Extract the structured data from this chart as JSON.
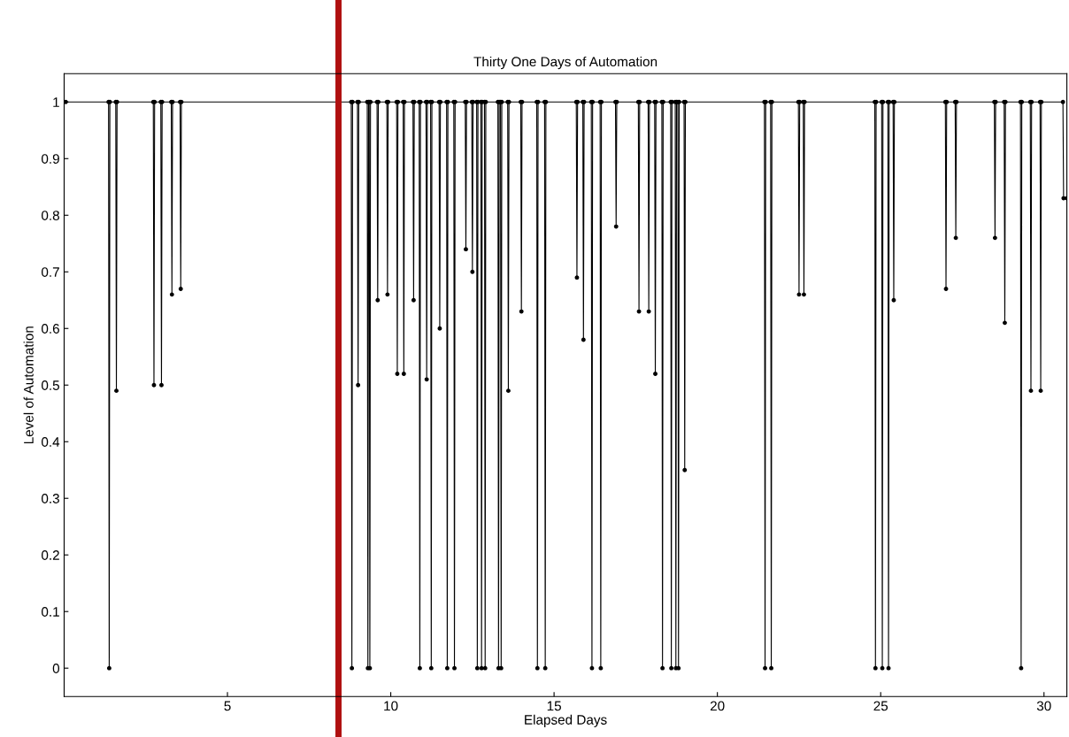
{
  "chart_data": {
    "type": "line",
    "title": "Thirty One Days of Automation",
    "xlabel": "Elapsed Days",
    "ylabel": "Level of Automation",
    "xlim": [
      0,
      30.7
    ],
    "ylim": [
      -0.05,
      1.05
    ],
    "xticks": [
      5,
      10,
      15,
      20,
      25,
      30
    ],
    "yticks": [
      0,
      0.1,
      0.2,
      0.3,
      0.4,
      0.5,
      0.6,
      0.7,
      0.8,
      0.9,
      1
    ],
    "marker": "circle",
    "line_style": "solid",
    "grid": false,
    "legend": false,
    "ref_lines": [
      {
        "axis": "x",
        "value": 8.4,
        "color": "#b01010",
        "line_style": "solid"
      }
    ],
    "series": [
      {
        "color": "#000000",
        "x": [
          0.05,
          1.36,
          1.38,
          1.4,
          1.58,
          1.6,
          1.62,
          2.73,
          2.75,
          2.77,
          2.96,
          2.98,
          3.0,
          3.28,
          3.3,
          3.32,
          3.55,
          3.57,
          3.59,
          8.79,
          8.81,
          8.83,
          8.98,
          9.0,
          9.02,
          9.28,
          9.3,
          9.32,
          9.34,
          9.36,
          9.38,
          9.58,
          9.6,
          9.62,
          9.88,
          9.9,
          9.92,
          10.18,
          10.2,
          10.22,
          10.38,
          10.4,
          10.42,
          10.68,
          10.7,
          10.72,
          10.87,
          10.89,
          10.91,
          11.08,
          11.1,
          11.12,
          11.22,
          11.24,
          11.26,
          11.48,
          11.5,
          11.52,
          11.71,
          11.73,
          11.75,
          11.93,
          11.95,
          11.97,
          12.28,
          12.3,
          12.32,
          12.48,
          12.5,
          12.52,
          12.63,
          12.65,
          12.67,
          12.76,
          12.78,
          12.8,
          12.87,
          12.89,
          12.91,
          13.28,
          13.3,
          13.32,
          13.36,
          13.38,
          13.4,
          13.58,
          13.6,
          13.62,
          13.98,
          14.0,
          14.02,
          14.47,
          14.49,
          14.51,
          14.71,
          14.73,
          14.75,
          15.68,
          15.7,
          15.72,
          15.88,
          15.9,
          15.92,
          16.14,
          16.16,
          16.18,
          16.41,
          16.43,
          16.45,
          16.88,
          16.9,
          16.92,
          17.58,
          17.6,
          17.62,
          17.88,
          17.9,
          17.92,
          18.08,
          18.1,
          18.12,
          18.3,
          18.32,
          18.34,
          18.57,
          18.59,
          18.61,
          18.71,
          18.73,
          18.75,
          18.79,
          18.81,
          18.83,
          18.98,
          19.0,
          19.02,
          21.44,
          21.46,
          21.48,
          21.63,
          21.65,
          21.67,
          22.48,
          22.5,
          22.52,
          22.63,
          22.65,
          22.67,
          24.82,
          24.84,
          24.86,
          25.03,
          25.05,
          25.07,
          25.22,
          25.24,
          25.26,
          25.38,
          25.4,
          25.42,
          26.98,
          27.0,
          27.02,
          27.28,
          27.3,
          27.32,
          28.48,
          28.5,
          28.52,
          28.78,
          28.8,
          28.82,
          29.28,
          29.3,
          29.32,
          29.58,
          29.6,
          29.62,
          29.88,
          29.9,
          29.92,
          30.58,
          30.6,
          30.7
        ],
        "values": [
          1,
          1,
          0,
          1,
          1,
          0.49,
          1,
          1,
          0.5,
          1,
          1,
          0.5,
          1,
          1,
          0.66,
          1,
          1,
          0.67,
          1,
          1,
          0,
          1,
          1,
          0.5,
          1,
          1,
          0,
          1,
          1,
          0,
          1,
          1,
          0.65,
          1,
          1,
          0.66,
          1,
          1,
          0.52,
          1,
          1,
          0.52,
          1,
          1,
          0.65,
          1,
          1,
          0,
          1,
          1,
          0.51,
          1,
          1,
          0,
          1,
          1,
          0.6,
          1,
          1,
          0,
          1,
          1,
          0,
          1,
          1,
          0.74,
          1,
          1,
          0.7,
          1,
          1,
          0,
          1,
          1,
          0,
          1,
          1,
          0,
          1,
          1,
          0,
          1,
          1,
          0,
          1,
          1,
          0.49,
          1,
          1,
          0.63,
          1,
          1,
          0,
          1,
          1,
          0,
          1,
          1,
          0.69,
          1,
          1,
          0.58,
          1,
          1,
          0,
          1,
          1,
          0,
          1,
          1,
          0.78,
          1,
          1,
          0.63,
          1,
          1,
          0.63,
          1,
          1,
          0.52,
          1,
          1,
          0,
          1,
          1,
          0,
          1,
          1,
          0,
          1,
          1,
          0,
          1,
          1,
          0.35,
          1,
          1,
          0,
          1,
          1,
          0,
          1,
          1,
          0.66,
          1,
          1,
          0.66,
          1,
          1,
          0,
          1,
          1,
          0,
          1,
          1,
          0,
          1,
          1,
          0.65,
          1,
          1,
          0.67,
          1,
          1,
          0.76,
          1,
          1,
          0.76,
          1,
          1,
          0.61,
          1,
          1,
          0,
          1,
          1,
          0.49,
          1,
          1,
          0.49,
          1,
          1,
          0.83,
          0.83
        ]
      }
    ]
  }
}
